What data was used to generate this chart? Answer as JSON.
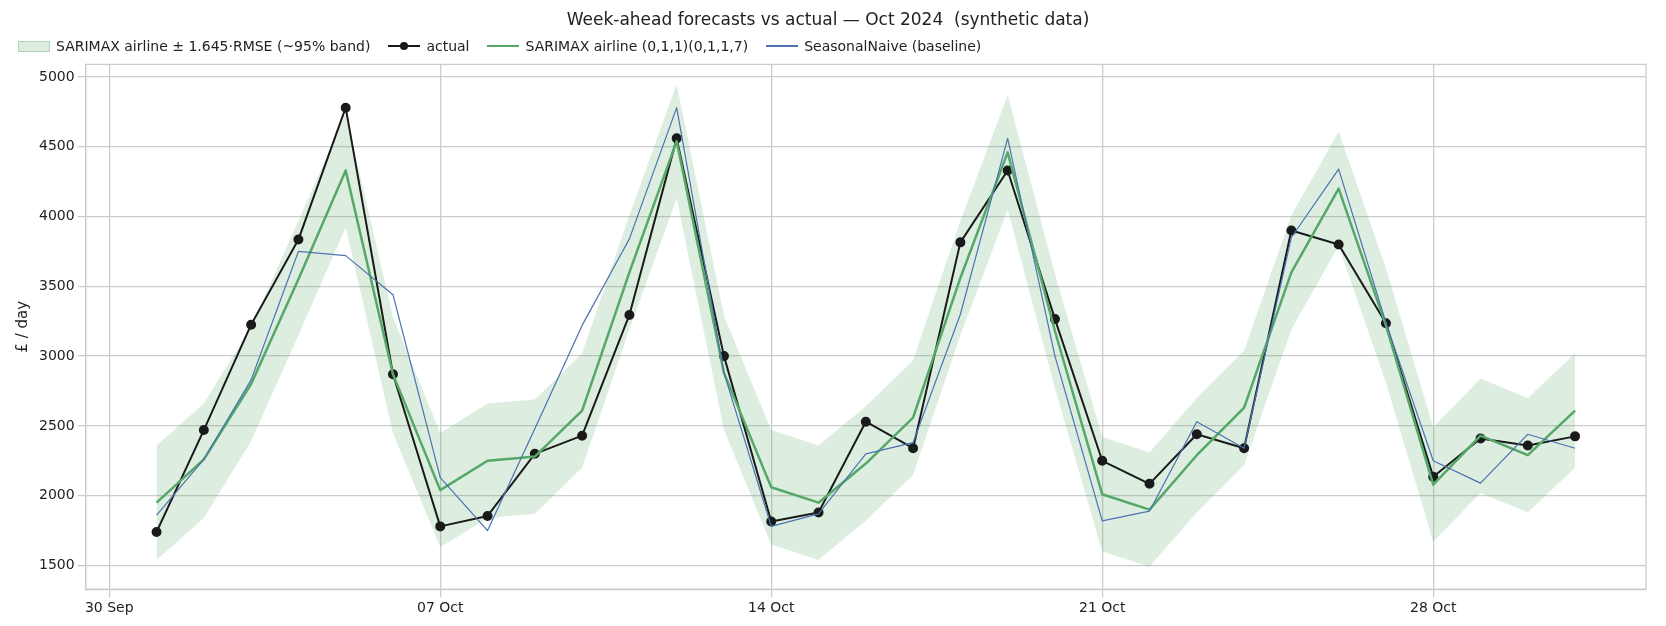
{
  "chart_data": {
    "type": "line",
    "title": "Week-ahead forecasts vs actual — Oct 2024  (synthetic data)",
    "ylabel": "£ / day",
    "annotations": [
      "SARIMAX airline ± 1.645·RMSE  (~95% band)"
    ],
    "x": [
      "2024-10-01",
      "2024-10-02",
      "2024-10-03",
      "2024-10-04",
      "2024-10-05",
      "2024-10-06",
      "2024-10-07",
      "2024-10-08",
      "2024-10-09",
      "2024-10-10",
      "2024-10-11",
      "2024-10-12",
      "2024-10-13",
      "2024-10-14",
      "2024-10-15",
      "2024-10-16",
      "2024-10-17",
      "2024-10-18",
      "2024-10-19",
      "2024-10-20",
      "2024-10-21",
      "2024-10-22",
      "2024-10-23",
      "2024-10-24",
      "2024-10-25",
      "2024-10-26",
      "2024-10-27",
      "2024-10-28",
      "2024-10-29",
      "2024-10-30",
      "2024-10-31"
    ],
    "xlim": [
      "2024-09-29T12:00",
      "2024-11-01T12:00"
    ],
    "xticks": [
      {
        "value": "2024-09-30",
        "label": "30 Sep"
      },
      {
        "value": "2024-10-07",
        "label": "07 Oct"
      },
      {
        "value": "2024-10-14",
        "label": "14 Oct"
      },
      {
        "value": "2024-10-21",
        "label": "21 Oct"
      },
      {
        "value": "2024-10-28",
        "label": "28 Oct"
      }
    ],
    "ylim": [
      1330,
      5090
    ],
    "yticks": [
      1500,
      2000,
      2500,
      3000,
      3500,
      4000,
      4500,
      5000
    ],
    "grid": true,
    "legend": "top left",
    "series": [
      {
        "type": "line",
        "name": "actual",
        "color": "#1a1a1a",
        "marker": "circle",
        "values": [
          1740,
          2470,
          3225,
          3835,
          4780,
          2870,
          1780,
          1855,
          2300,
          2430,
          3295,
          4560,
          3000,
          1815,
          1880,
          2530,
          2340,
          3815,
          4330,
          3265,
          2250,
          2085,
          2440,
          2340,
          3900,
          3800,
          3235,
          2135,
          2410,
          2360,
          2425
        ]
      },
      {
        "type": "line",
        "name": "SARIMAX airline (0,1,1)(0,1,1,7)",
        "color": "#55a868",
        "values": [
          1950,
          2260,
          2800,
          3550,
          4330,
          2870,
          2040,
          2250,
          2280,
          2610,
          3600,
          4540,
          2880,
          2060,
          1950,
          2230,
          2560,
          3560,
          4460,
          3180,
          2010,
          1900,
          2290,
          2630,
          3600,
          4200,
          3220,
          2080,
          2430,
          2290,
          2610
        ],
        "lower": [
          1540,
          1840,
          2390,
          3150,
          3920,
          2450,
          1630,
          1840,
          1870,
          2200,
          3190,
          4130,
          2470,
          1650,
          1540,
          1820,
          2150,
          3150,
          4050,
          2770,
          1600,
          1490,
          1880,
          2220,
          3190,
          3790,
          2810,
          1670,
          2020,
          1880,
          2200
        ],
        "upper": [
          2360,
          2660,
          3210,
          3970,
          4740,
          3280,
          2450,
          2660,
          2690,
          3020,
          4010,
          4950,
          3290,
          2470,
          2360,
          2640,
          2970,
          3970,
          4870,
          3590,
          2420,
          2310,
          2700,
          3040,
          4010,
          4610,
          3630,
          2490,
          2840,
          2700,
          3020
        ]
      },
      {
        "type": "line",
        "name": "SeasonalNaive (baseline)",
        "color": "#4c72b0",
        "values": [
          1860,
          2260,
          2830,
          3750,
          3720,
          3440,
          2130,
          1750,
          2480,
          3220,
          3840,
          4780,
          2880,
          1780,
          1870,
          2300,
          2380,
          3300,
          4560,
          3000,
          1820,
          1890,
          2530,
          2340,
          3850,
          4340,
          3240,
          2250,
          2090,
          2440,
          2340
        ]
      }
    ]
  }
}
